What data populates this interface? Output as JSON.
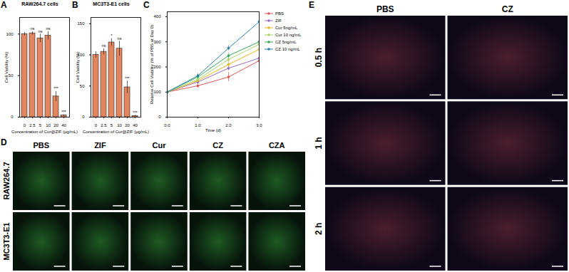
{
  "chart_data": [
    {
      "type": "bar",
      "panel": "A",
      "title": "RAW264.7 cells",
      "x_label": "Concentration of Cur@ZIF (μg/mL)",
      "y_label": "Cell Viability (%)",
      "categories": [
        "0",
        "2.5",
        "5",
        "10",
        "20",
        "40"
      ],
      "values": [
        100,
        101,
        95,
        98,
        25,
        2
      ],
      "errors": [
        2,
        2,
        5,
        5,
        6,
        1
      ],
      "annotations": [
        null,
        "ns",
        "ns",
        "ns",
        "***",
        "***"
      ],
      "color": "#e3865f",
      "ylim": [
        0,
        120
      ],
      "yticks": [
        0,
        50,
        100
      ],
      "grid": false
    },
    {
      "type": "bar",
      "panel": "B",
      "title": "MC3T3-E1 cells",
      "x_label": "Concentration of Cur@ZIF (μg/mL)",
      "y_label": "Cell Viability (%)",
      "categories": [
        "0",
        "2.5",
        "5",
        "10",
        "20",
        "40"
      ],
      "values": [
        100,
        105,
        120,
        110,
        48,
        2
      ],
      "errors": [
        5,
        5,
        6,
        12,
        10,
        1
      ],
      "annotations": [
        null,
        "ns",
        "*",
        "ns",
        "***",
        "***"
      ],
      "color": "#e3865f",
      "ylim": [
        0,
        160
      ],
      "yticks": [
        0,
        50,
        100,
        150
      ],
      "grid": false
    },
    {
      "type": "line",
      "panel": "C",
      "x_label": "Time (d)",
      "y_label": "Relative Cell Viability (% of PBS at Day 0)",
      "x": [
        0,
        1,
        2,
        3
      ],
      "xlim": [
        0,
        3
      ],
      "xticks": [
        0,
        1,
        2,
        3
      ],
      "ylim": [
        0,
        420
      ],
      "yticks": [
        0,
        100,
        200,
        300,
        400
      ],
      "marker": "circle",
      "line_style": "solid",
      "grid": false,
      "series": [
        {
          "name": "PBS",
          "color": "#e05656",
          "values": [
            100,
            125,
            160,
            225
          ],
          "errors": [
            0,
            10,
            18,
            15
          ]
        },
        {
          "name": "ZIF",
          "color": "#9a6cc0",
          "values": [
            100,
            140,
            195,
            235
          ],
          "errors": [
            0,
            8,
            10,
            12
          ]
        },
        {
          "name": "Cur 5ng/mL",
          "color": "#e8b41c",
          "values": [
            100,
            145,
            210,
            270
          ],
          "errors": [
            0,
            8,
            10,
            12
          ]
        },
        {
          "name": "Cur 10 ng/mL",
          "color": "#a8d46a",
          "values": [
            100,
            150,
            230,
            290
          ],
          "errors": [
            0,
            8,
            10,
            12
          ]
        },
        {
          "name": "CZ 5ng/mL",
          "color": "#3aa85a",
          "values": [
            100,
            160,
            245,
            300
          ],
          "errors": [
            0,
            8,
            10,
            12
          ]
        },
        {
          "name": "CZ 10 ng/mL",
          "color": "#2a7fb0",
          "values": [
            100,
            165,
            275,
            380
          ],
          "errors": [
            0,
            8,
            10,
            18
          ]
        }
      ]
    },
    {
      "type": "image_grid",
      "panel": "D",
      "columns": [
        "PBS",
        "ZIF",
        "Cur",
        "CZ",
        "CZA"
      ],
      "rows": [
        "RAW264.7",
        "MC3T3-E1"
      ]
    },
    {
      "type": "image_grid",
      "panel": "E",
      "columns": [
        "PBS",
        "CZ"
      ],
      "rows": [
        "0.5 h",
        "1 h",
        "2 h"
      ]
    }
  ]
}
